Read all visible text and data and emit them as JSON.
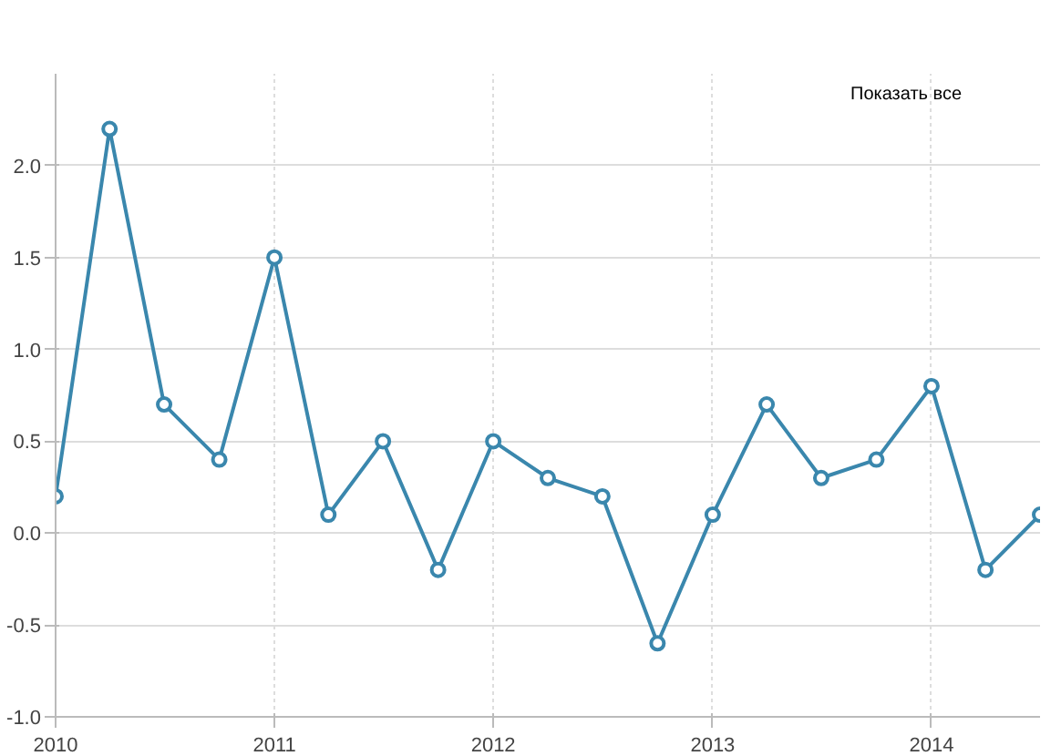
{
  "chart_data": {
    "type": "line",
    "x": [
      "2010-01",
      "2010-04",
      "2010-07",
      "2010-10",
      "2011-01",
      "2011-04",
      "2011-07",
      "2011-10",
      "2012-01",
      "2012-04",
      "2012-07",
      "2012-10",
      "2013-01",
      "2013-04",
      "2013-07",
      "2013-10",
      "2014-01",
      "2014-04",
      "2014-07"
    ],
    "series": [
      {
        "color": "#3a87ad",
        "values": [
          0.2,
          2.2,
          0.7,
          0.4,
          1.5,
          0.1,
          0.5,
          -0.2,
          0.5,
          0.3,
          0.2,
          -0.6,
          0.1,
          0.7,
          0.3,
          0.4,
          0.8,
          -0.2,
          0.1
        ]
      }
    ],
    "xlim": [
      "2010-01",
      "2014-07"
    ],
    "xticks": [
      {
        "value": "2010-01",
        "label": "2010"
      },
      {
        "value": "2011-01",
        "label": "2011"
      },
      {
        "value": "2012-01",
        "label": "2012"
      },
      {
        "value": "2013-01",
        "label": "2013"
      },
      {
        "value": "2014-01",
        "label": "2014"
      }
    ],
    "ylim": [
      -1.0,
      2.5
    ],
    "yticks": [
      {
        "value": -1.0,
        "label": "-1.0"
      },
      {
        "value": -0.5,
        "label": "-0.5"
      },
      {
        "value": 0.0,
        "label": "0.0"
      },
      {
        "value": 0.5,
        "label": "0.5"
      },
      {
        "value": 1.0,
        "label": "1.0"
      },
      {
        "value": 1.5,
        "label": "1.5"
      },
      {
        "value": 2.0,
        "label": "2.0"
      }
    ],
    "grid": true,
    "marker": "circle",
    "line_style": "solid",
    "annotations": [
      "Показать все"
    ]
  }
}
